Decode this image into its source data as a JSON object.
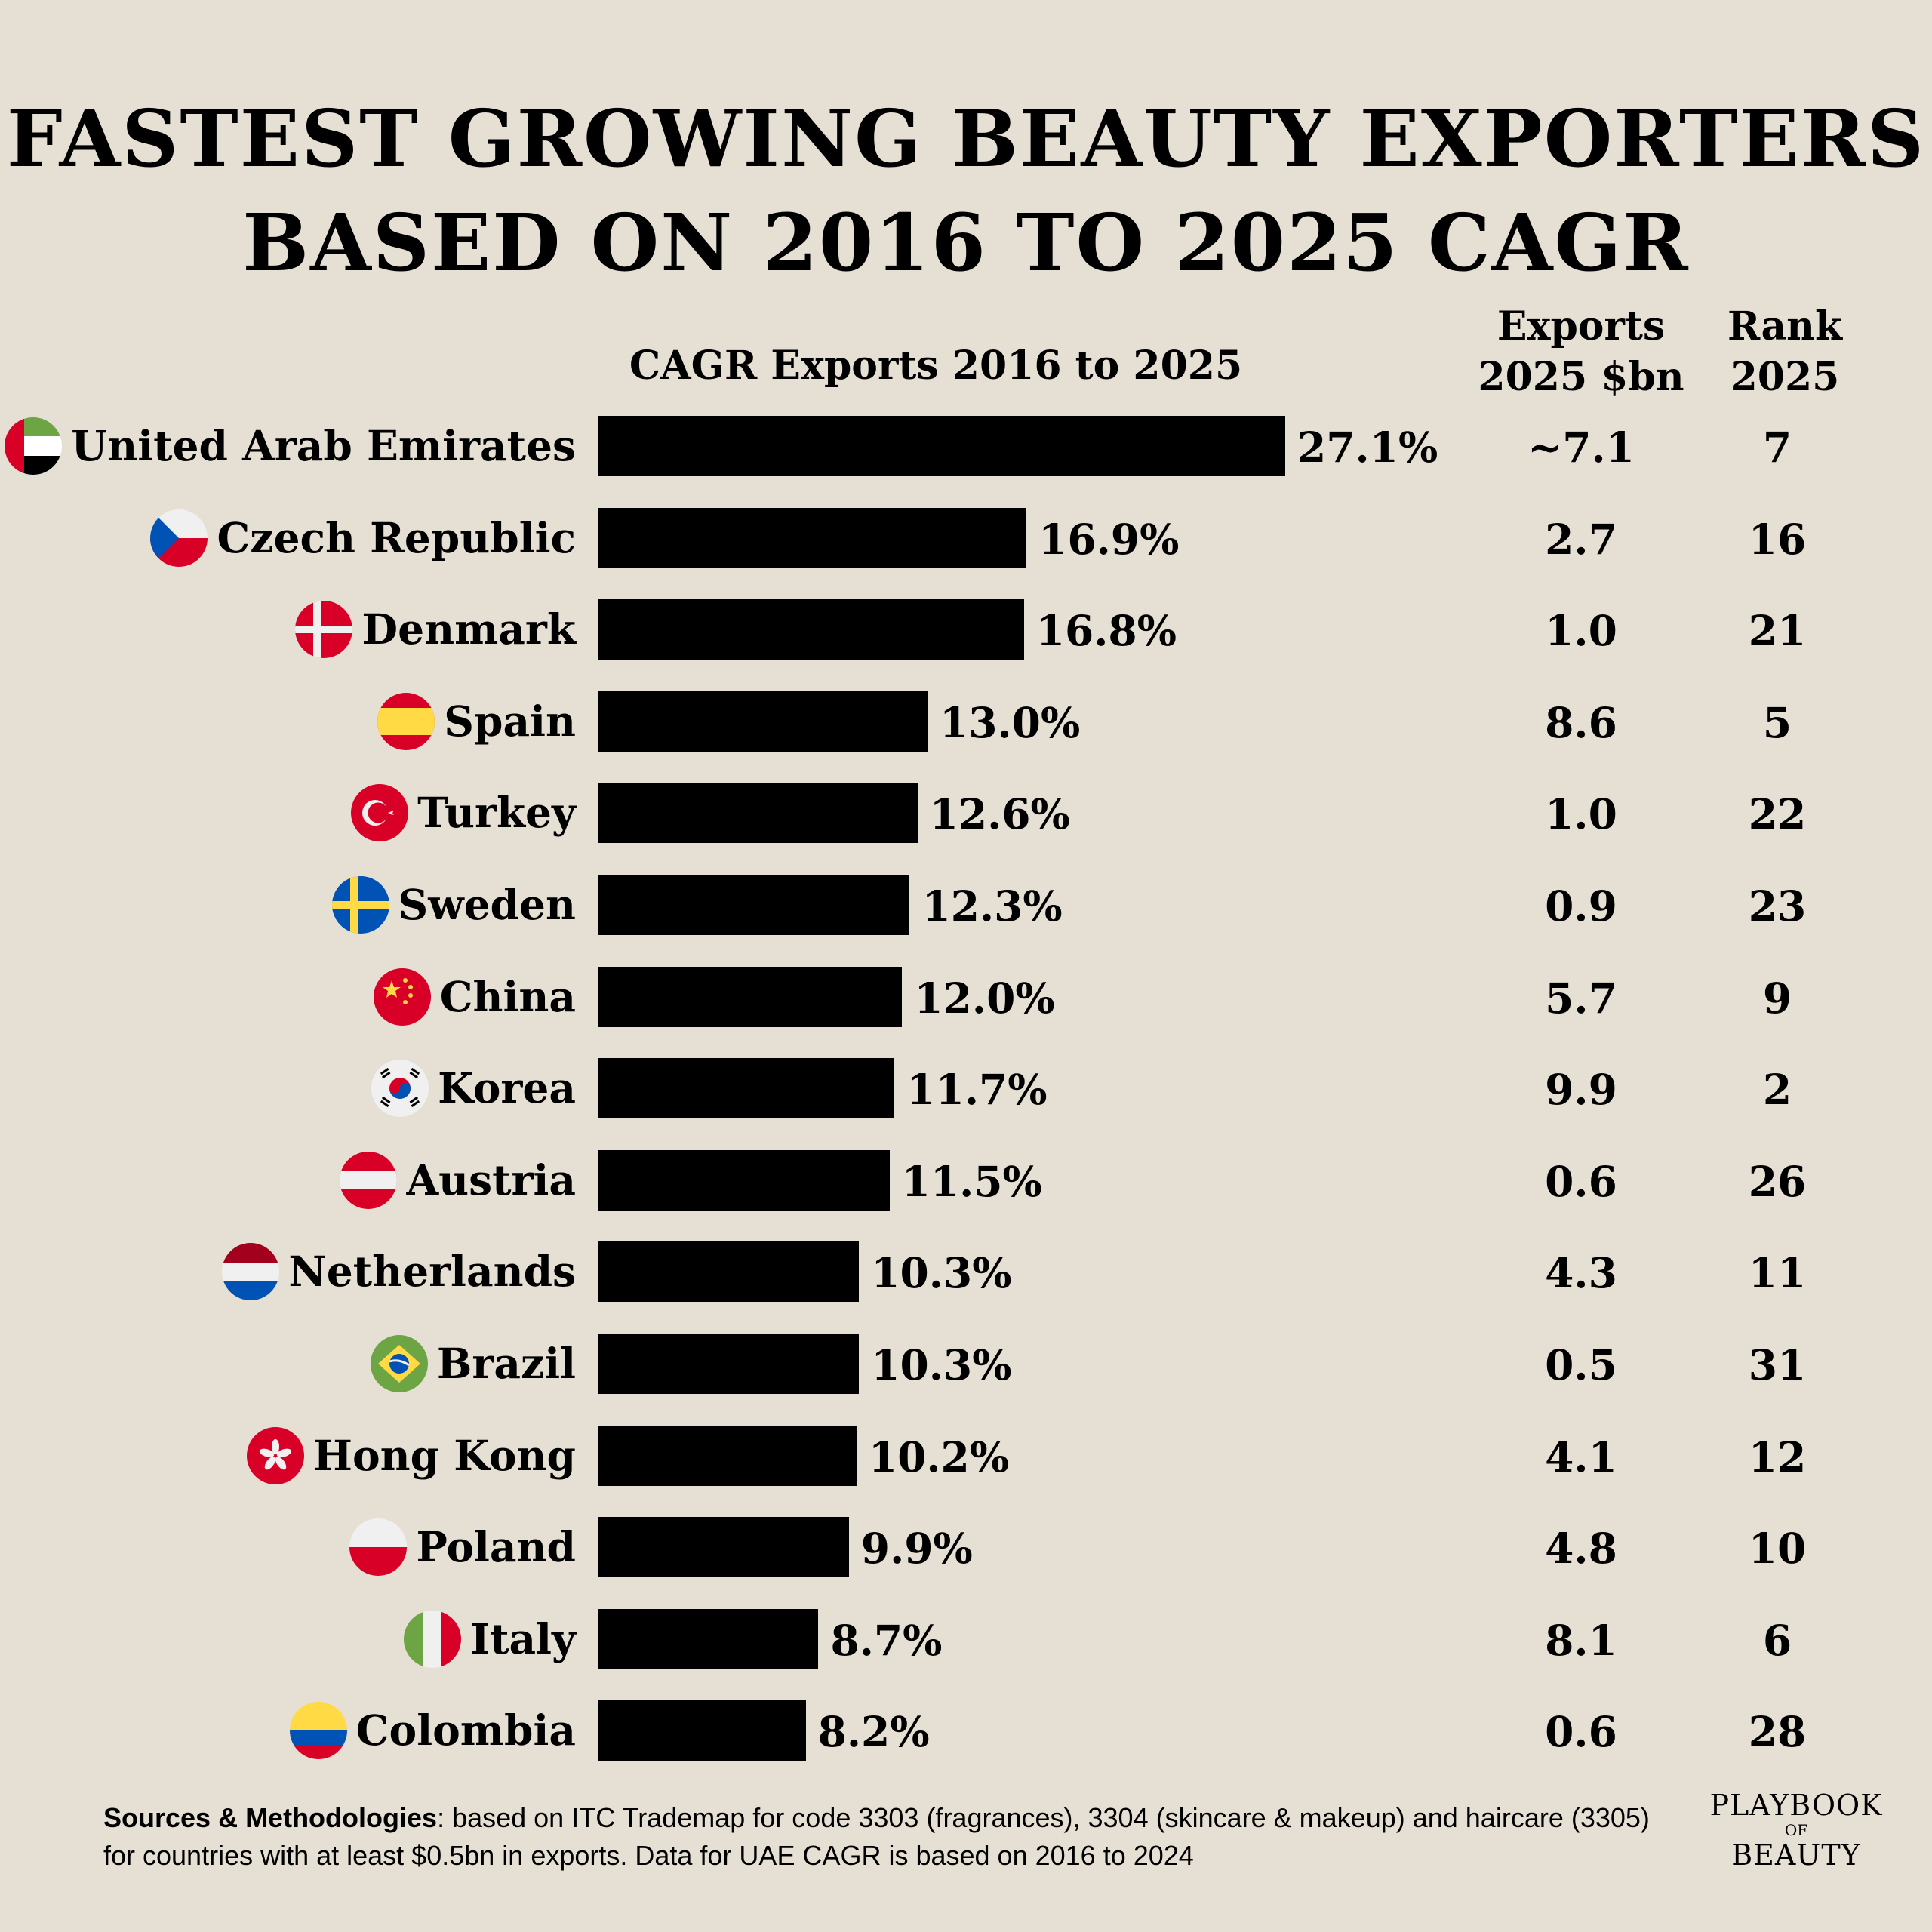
{
  "title": {
    "line1": "FASTEST GROWING BEAUTY EXPORTERS",
    "line2": "BASED ON 2016 TO 2025 CAGR"
  },
  "headers": {
    "cagr": "CAGR Exports 2016 to 2025",
    "exports_line1": "Exports",
    "exports_line2": "2025 $bn",
    "rank_line1": "Rank",
    "rank_line2": "2025"
  },
  "chart_data": {
    "type": "bar",
    "orientation": "horizontal",
    "title": "CAGR Exports 2016 to 2025",
    "unit": "%",
    "categories": [
      "United Arab Emirates",
      "Czech Republic",
      "Denmark",
      "Spain",
      "Turkey",
      "Sweden",
      "China",
      "Korea",
      "Austria",
      "Netherlands",
      "Brazil",
      "Hong Kong",
      "Poland",
      "Italy",
      "Colombia"
    ],
    "values": [
      27.1,
      16.9,
      16.8,
      13.0,
      12.6,
      12.3,
      12.0,
      11.7,
      11.5,
      10.3,
      10.3,
      10.2,
      9.9,
      8.7,
      8.2
    ],
    "value_labels": [
      "27.1%",
      "16.9%",
      "16.8%",
      "13.0%",
      "12.6%",
      "12.3%",
      "12.0%",
      "11.7%",
      "11.5%",
      "10.3%",
      "10.3%",
      "10.2%",
      "9.9%",
      "8.7%",
      "8.2%"
    ],
    "exports_2025_bn": [
      "~7.1",
      "2.7",
      "1.0",
      "8.6",
      "1.0",
      "0.9",
      "5.7",
      "9.9",
      "0.6",
      "4.3",
      "0.5",
      "4.1",
      "4.8",
      "8.1",
      "0.6"
    ],
    "rank_2025": [
      "7",
      "16",
      "21",
      "5",
      "22",
      "23",
      "9",
      "2",
      "26",
      "11",
      "31",
      "12",
      "10",
      "6",
      "28"
    ],
    "flag_icons": [
      "uae-flag-icon",
      "czech-flag-icon",
      "denmark-flag-icon",
      "spain-flag-icon",
      "turkey-flag-icon",
      "sweden-flag-icon",
      "china-flag-icon",
      "korea-flag-icon",
      "austria-flag-icon",
      "netherlands-flag-icon",
      "brazil-flag-icon",
      "hongkong-flag-icon",
      "poland-flag-icon",
      "italy-flag-icon",
      "colombia-flag-icon"
    ],
    "bar_color": "#000000",
    "background_color": "#e6dfd3"
  },
  "footer": {
    "label": "Sources & Methodologies",
    "text": ": based on ITC Trademap for code 3303 (fragrances), 3304 (skincare & makeup) and haircare (3305) for countries with at least $0.5bn in exports.  Data for UAE CAGR is based on 2016 to 2024"
  },
  "logo": {
    "line1": "PLAYBOOK",
    "line2": "OF",
    "line3": "BEAUTY"
  }
}
